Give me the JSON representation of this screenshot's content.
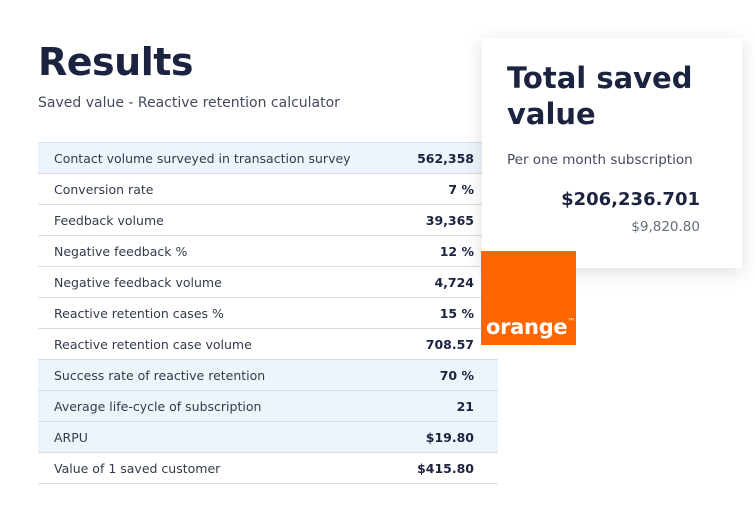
{
  "header": {
    "title": "Results",
    "subtitle": "Saved value - Reactive retention calculator"
  },
  "table": {
    "rows": [
      [
        "Contact volume surveyed in transaction survey",
        "562,358"
      ],
      [
        "Conversion rate",
        "7 %"
      ],
      [
        "Feedback volume",
        "39,365"
      ],
      [
        "Negative feedback %",
        "12 %"
      ],
      [
        "Negative feedback volume",
        "4,724"
      ],
      [
        "Reactive retention cases %",
        "15 %"
      ],
      [
        "Reactive retention case volume",
        "708.57"
      ],
      [
        "Success rate of reactive retention",
        "70 %"
      ],
      [
        "Average life-cycle of subscription",
        "21"
      ],
      [
        "ARPU",
        "$19.80"
      ],
      [
        "Value of 1 saved customer",
        "$415.80"
      ]
    ]
  },
  "card": {
    "title": "Total saved value",
    "subtitle": "Per one month subscription",
    "total": "$206,236.701",
    "secondary": "$9,820.80"
  },
  "logo": {
    "text": "orange",
    "mark": "™"
  }
}
